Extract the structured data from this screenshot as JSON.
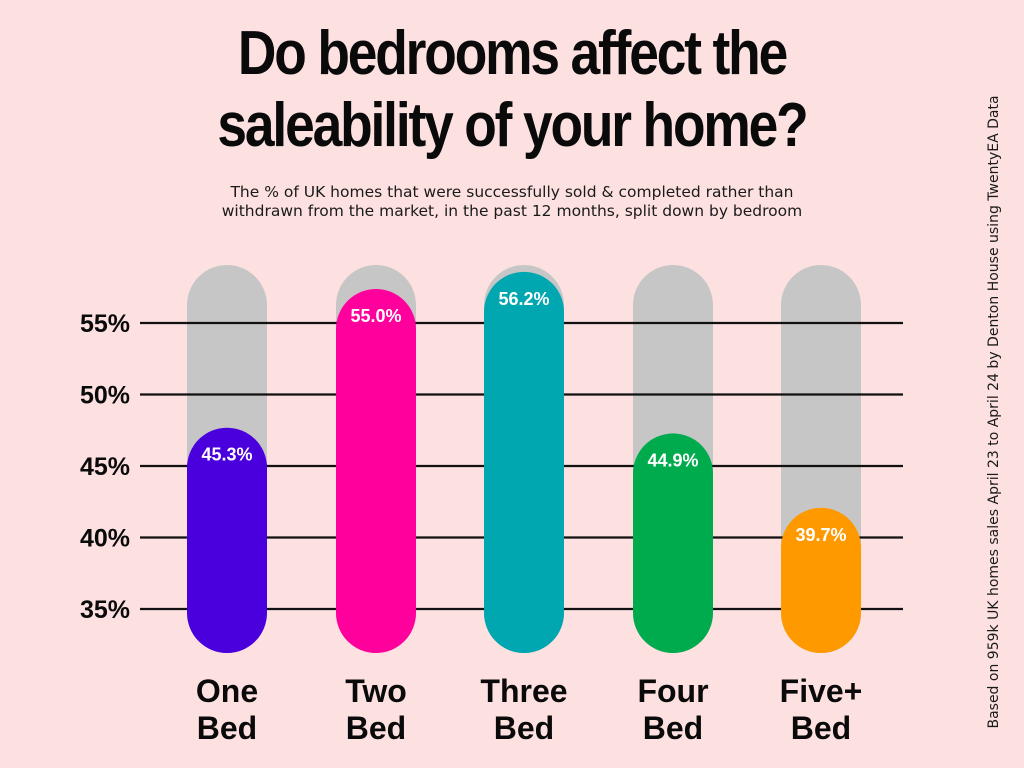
{
  "title_lines": [
    "Do bedrooms affect the",
    "saleability of your home?"
  ],
  "subtitle_lines": [
    "The % of UK homes that were successfully sold & completed rather than",
    "withdrawn from the market, in the past 12 months, split down by bedroom"
  ],
  "source_note": "Based on 959k UK homes sales April 23 to April 24 by Denton House using TwentyEA Data",
  "colors": {
    "background": "#fde1e1",
    "track": "#c6c6c6",
    "gridline": "#111111"
  },
  "chart_data": {
    "type": "bar",
    "title": "Do bedrooms affect the saleability of your home?",
    "subtitle": "The % of UK homes that were successfully sold & completed rather than withdrawn from the market, in the past 12 months, split down by bedroom",
    "categories": [
      [
        "One",
        "Bed"
      ],
      [
        "Two",
        "Bed"
      ],
      [
        "Three",
        "Bed"
      ],
      [
        "Four",
        "Bed"
      ],
      [
        "Five+",
        "Bed"
      ]
    ],
    "values": [
      45.3,
      55.0,
      56.2,
      44.9,
      39.7
    ],
    "value_labels": [
      "45.3%",
      "55.0%",
      "56.2%",
      "44.9%",
      "39.7%"
    ],
    "bar_colors": [
      "#4a00dc",
      "#ff009c",
      "#00a6b0",
      "#00ab4e",
      "#ff9900"
    ],
    "yticks": [
      35,
      40,
      45,
      50,
      55
    ],
    "ytick_labels": [
      "35%",
      "40%",
      "45%",
      "50%",
      "55%"
    ],
    "ylim": [
      31,
      59
    ],
    "grid": true,
    "legend": "none",
    "xlabel": "",
    "ylabel": ""
  }
}
